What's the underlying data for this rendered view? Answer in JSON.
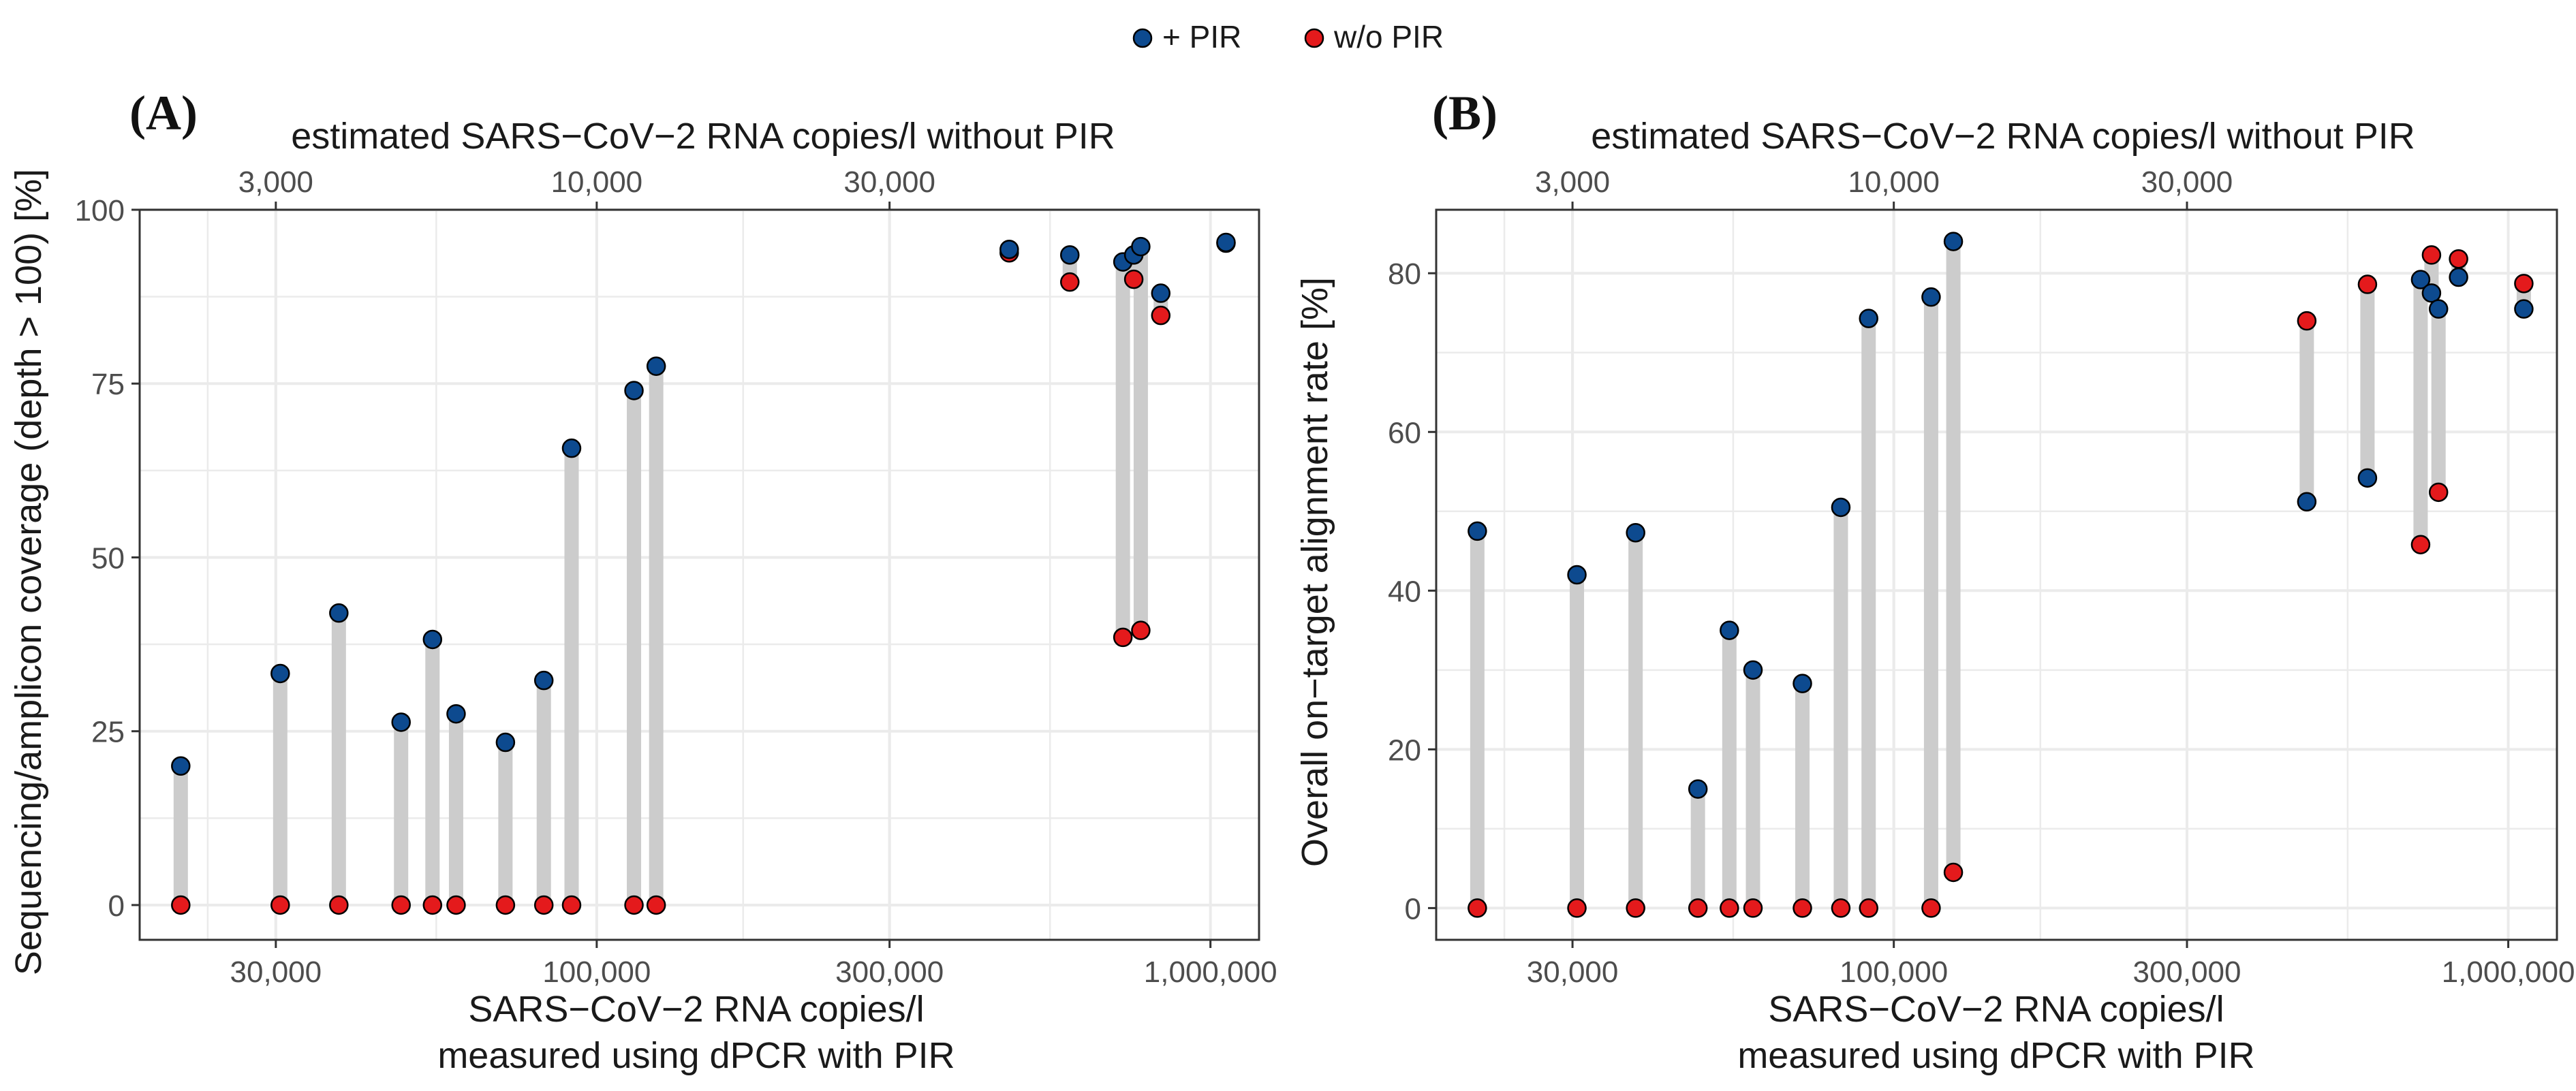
{
  "legend": {
    "items": [
      {
        "label": "+ PIR",
        "color": "#0d4a8f"
      },
      {
        "label": "w/o PIR",
        "color": "#e41a1c"
      }
    ]
  },
  "colors": {
    "with_pir": "#0d4a8f",
    "without_pir": "#e41a1c",
    "segment": "#cccccc",
    "grid": "#ebebeb"
  },
  "chart_data": [
    {
      "panel": "(A)",
      "type": "scatter",
      "title": "",
      "xlabel_lines": [
        "SARS−CoV−2 RNA copies/l",
        "measured using dPCR with PIR"
      ],
      "x2label": "estimated SARS−CoV−2 RNA copies/l without PIR",
      "ylabel": "Sequencing/amplicon coverage (depth > 100) [%]",
      "xscale": "log10",
      "xlim": [
        18000,
        1200000
      ],
      "ylim": [
        -5,
        100
      ],
      "x_ticks": [
        30000,
        100000,
        300000,
        1000000
      ],
      "x_tick_labels": [
        "30,000",
        "100,000",
        "300,000",
        "1,000,000"
      ],
      "x2_ticks": [
        3000,
        10000,
        30000
      ],
      "x2_tick_labels": [
        "3,000",
        "10,000",
        "30,000"
      ],
      "x2_factor": 0.1,
      "y_ticks": [
        0,
        25,
        50,
        75,
        100
      ],
      "y_tick_labels": [
        "0",
        "25",
        "50",
        "75",
        "100"
      ],
      "series": [
        {
          "name": "+ PIR",
          "x_measured": [
            21000,
            30500,
            38000,
            48000,
            54000,
            59000,
            71000,
            82000,
            91000,
            115000,
            125000,
            470000,
            590000,
            720000,
            750000,
            770000,
            830000,
            1060000
          ],
          "y": [
            20,
            33.3,
            42,
            26.3,
            38.2,
            27.5,
            23.4,
            32.3,
            65.7,
            74,
            77.5,
            94.3,
            93.5,
            92.5,
            93.5,
            94.7,
            88,
            95.3
          ]
        },
        {
          "name": "w/o PIR",
          "x_measured": [
            21000,
            30500,
            38000,
            48000,
            54000,
            59000,
            71000,
            82000,
            91000,
            115000,
            125000,
            470000,
            590000,
            720000,
            750000,
            770000,
            830000,
            1060000
          ],
          "y": [
            0,
            0,
            0,
            0,
            0,
            0,
            0,
            0,
            0,
            0,
            0,
            93.8,
            89.6,
            38.5,
            90,
            39.5,
            84.8,
            95.2
          ]
        }
      ]
    },
    {
      "panel": "(B)",
      "type": "scatter",
      "title": "",
      "xlabel_lines": [
        "SARS−CoV−2 RNA copies/l",
        "measured using dPCR with PIR"
      ],
      "x2label": "estimated SARS−CoV−2 RNA copies/l without PIR",
      "ylabel": "Overall on−target alignment rate [%]",
      "xscale": "log10",
      "xlim": [
        18000,
        1200000
      ],
      "ylim": [
        -4,
        88
      ],
      "x_ticks": [
        30000,
        100000,
        300000,
        1000000
      ],
      "x_tick_labels": [
        "30,000",
        "100,000",
        "300,000",
        "1,000,000"
      ],
      "x2_ticks": [
        3000,
        10000,
        30000
      ],
      "x2_tick_labels": [
        "3,000",
        "10,000",
        "30,000"
      ],
      "x2_factor": 0.1,
      "y_ticks": [
        0,
        20,
        40,
        60,
        80
      ],
      "y_tick_labels": [
        "0",
        "20",
        "40",
        "60",
        "80"
      ],
      "series": [
        {
          "name": "+ PIR",
          "x_measured": [
            21000,
            30500,
            38000,
            48000,
            54000,
            59000,
            71000,
            82000,
            91000,
            115000,
            125000,
            470000,
            590000,
            720000,
            750000,
            770000,
            830000,
            1060000
          ],
          "y": [
            47.5,
            42,
            47.3,
            15,
            35,
            30,
            28.3,
            50.5,
            74.3,
            77,
            84,
            51.2,
            54.2,
            79.2,
            77.5,
            75.5,
            79.5,
            75.5
          ]
        },
        {
          "name": "w/o PIR",
          "x_measured": [
            21000,
            30500,
            38000,
            48000,
            54000,
            59000,
            71000,
            82000,
            91000,
            115000,
            125000,
            470000,
            590000,
            720000,
            750000,
            770000,
            830000,
            1060000
          ],
          "y": [
            0,
            0,
            0,
            0,
            0,
            0,
            0,
            0,
            0,
            0,
            4.5,
            74,
            78.6,
            45.8,
            82.3,
            52.4,
            81.8,
            78.7
          ]
        }
      ]
    }
  ]
}
